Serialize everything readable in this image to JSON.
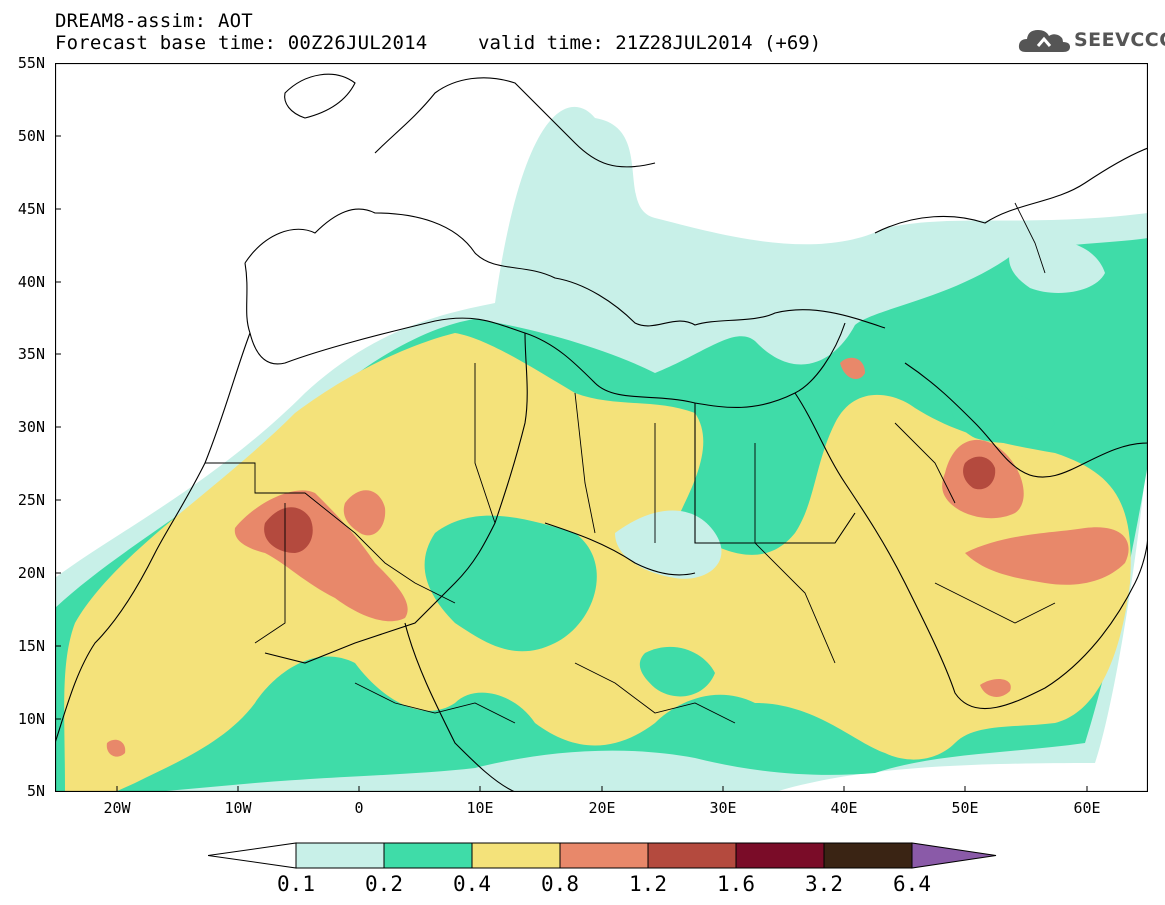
{
  "header": {
    "title": "DREAM8-assim: AOT",
    "forecast_base": "Forecast base time: 00Z26JUL2014",
    "valid_time": "valid time: 21Z28JUL2014 (+69)"
  },
  "logo": {
    "text": "SEEVCCC",
    "icon": "cloud-icon"
  },
  "map": {
    "lat_labels": [
      "55N",
      "50N",
      "45N",
      "40N",
      "35N",
      "30N",
      "25N",
      "20N",
      "15N",
      "10N",
      "5N"
    ],
    "lon_labels": [
      "20W",
      "10W",
      "0",
      "10E",
      "20E",
      "30E",
      "40E",
      "50E",
      "60E"
    ],
    "colors": {
      "c0": "#c8f0e8",
      "c1": "#3fdca8",
      "c2": "#f4e27a",
      "c3": "#e8886a",
      "c4": "#b44a3e",
      "c5": "#7a0c28",
      "c6": "#3a2414",
      "c7": "#8a5aa8"
    }
  },
  "colorbar": {
    "labels": [
      "0.1",
      "0.2",
      "0.4",
      "0.8",
      "1.2",
      "1.6",
      "3.2",
      "6.4"
    ],
    "colors": [
      "#c8f0e8",
      "#3fdca8",
      "#f4e27a",
      "#e8886a",
      "#b44a3e",
      "#7a0c28",
      "#3a2414"
    ]
  }
}
